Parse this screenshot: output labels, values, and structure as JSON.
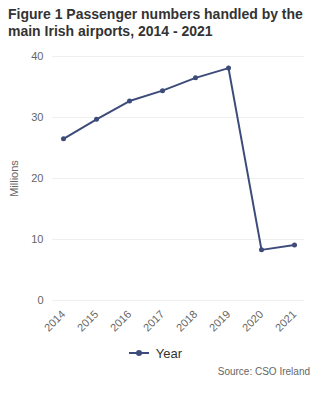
{
  "chart_data": {
    "type": "line",
    "title": "Figure 1 Passenger numbers handled by the main Irish airports, 2014 - 2021",
    "y_label": "Millions",
    "caption": "Source: CSO Ireland",
    "categories": [
      "2014",
      "2015",
      "2016",
      "2017",
      "2018",
      "2019",
      "2020",
      "2021"
    ],
    "series": [
      {
        "name": "Year",
        "color": "#3d4b7a",
        "marker": "circle",
        "line_style": "solid",
        "values": [
          26.5,
          29.7,
          32.7,
          34.4,
          36.5,
          38.1,
          8.3,
          9.1
        ]
      }
    ],
    "ylim": [
      0,
      40
    ],
    "yticks": [
      0,
      10,
      20,
      30,
      40
    ],
    "grid": true,
    "legend": "bottom"
  }
}
